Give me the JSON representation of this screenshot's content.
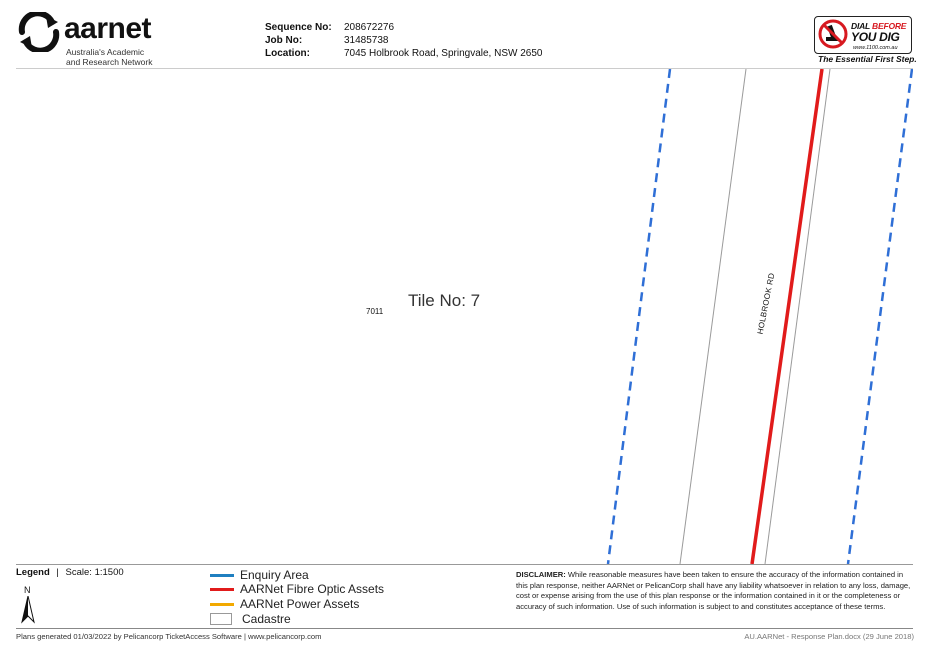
{
  "header": {
    "brand": {
      "name": "aarnet",
      "tagline_line1": "Australia's Academic",
      "tagline_line2": "and Research Network"
    },
    "fields": [
      {
        "label": "Sequence No:",
        "value": "208672276"
      },
      {
        "label": "Job No:",
        "value": "31485738"
      },
      {
        "label": "Location:",
        "value": "7045 Holbrook Road, Springvale, NSW  2650"
      }
    ],
    "dbyd": {
      "line1_a": "DIAL ",
      "line1_b": "BEFORE",
      "line2": "YOU DIG",
      "url": "www.1100.com.au",
      "slogan": "The Essential First Step."
    }
  },
  "map": {
    "tile_label": "Tile No: 7",
    "parcel_label": "7011",
    "road_label": "HOLBROOK RD",
    "colors": {
      "enquiry": "#2f6fd6",
      "fibre": "#e11b1b",
      "cadastre": "#9a9a9a"
    }
  },
  "legend": {
    "title": "Legend",
    "separator": "|",
    "scale": "Scale: 1:1500",
    "north": "N",
    "items": [
      {
        "label": "Enquiry Area",
        "color": "#1f7fc0",
        "kind": "line"
      },
      {
        "label": "AARNet Fibre Optic Assets",
        "color": "#e11b1b",
        "kind": "line"
      },
      {
        "label": "AARNet Power Assets",
        "color": "#f2a900",
        "kind": "line"
      },
      {
        "label": "Cadastre",
        "color": "#999999",
        "kind": "box"
      }
    ]
  },
  "disclaimer": {
    "heading": "DISCLAIMER:",
    "text": " While reasonable measures have been taken to ensure the accuracy of the information contained in this plan response, neither AARNet or PelicanCorp shall have any liability whatsoever in relation to any loss, damage, cost or expense arising from the use of this plan response or the information contained in it or the completeness or accuracy of such information. Use of such information is subject to and constitutes acceptance of these terms."
  },
  "footer": {
    "left": "Plans generated 01/03/2022 by Pelicancorp TicketAccess Software  |  www.pelicancorp.com",
    "right": "AU.AARNet - Response Plan.docx (29 June 2018)"
  }
}
